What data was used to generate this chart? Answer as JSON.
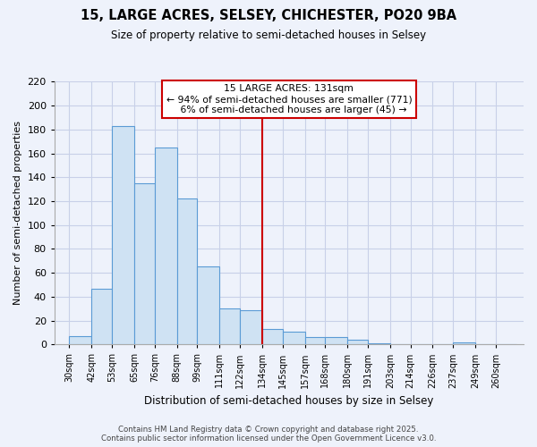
{
  "title": "15, LARGE ACRES, SELSEY, CHICHESTER, PO20 9BA",
  "subtitle": "Size of property relative to semi-detached houses in Selsey",
  "xlabel": "Distribution of semi-detached houses by size in Selsey",
  "ylabel": "Number of semi-detached properties",
  "bin_labels": [
    "30sqm",
    "42sqm",
    "53sqm",
    "65sqm",
    "76sqm",
    "88sqm",
    "99sqm",
    "111sqm",
    "122sqm",
    "134sqm",
    "145sqm",
    "157sqm",
    "168sqm",
    "180sqm",
    "191sqm",
    "203sqm",
    "214sqm",
    "226sqm",
    "237sqm",
    "249sqm",
    "260sqm"
  ],
  "bin_edges": [
    30,
    42,
    53,
    65,
    76,
    88,
    99,
    111,
    122,
    134,
    145,
    157,
    168,
    180,
    191,
    203,
    214,
    226,
    237,
    249,
    260,
    271
  ],
  "bar_heights": [
    7,
    47,
    183,
    135,
    165,
    122,
    65,
    30,
    29,
    13,
    11,
    6,
    6,
    4,
    1,
    0,
    0,
    0,
    2,
    0,
    0
  ],
  "bar_color": "#cfe2f3",
  "bar_edge_color": "#5b9bd5",
  "property_line_x": 134,
  "property_line_label": "15 LARGE ACRES: 131sqm",
  "annotation_line1": "← 94% of semi-detached houses are smaller (771)",
  "annotation_line2": "   6% of semi-detached houses are larger (45) →",
  "vline_color": "#cc0000",
  "ylim": [
    0,
    220
  ],
  "yticks": [
    0,
    20,
    40,
    60,
    80,
    100,
    120,
    140,
    160,
    180,
    200,
    220
  ],
  "xlim_left": 22,
  "xlim_right": 275,
  "footer_line1": "Contains HM Land Registry data © Crown copyright and database right 2025.",
  "footer_line2": "Contains public sector information licensed under the Open Government Licence v3.0.",
  "background_color": "#eef2fb",
  "grid_color": "#c8d0e8"
}
